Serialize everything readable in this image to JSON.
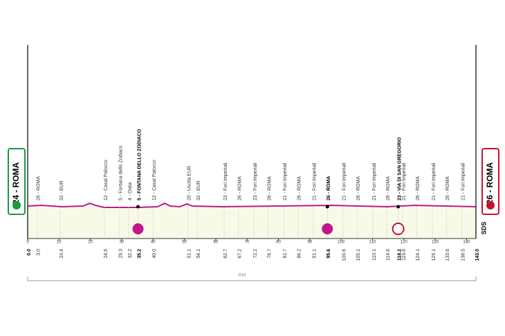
{
  "chart_data": {
    "type": "profile",
    "xlim": [
      0,
      143
    ],
    "xticks": [
      0,
      10,
      20,
      30,
      40,
      50,
      60,
      70,
      80,
      90,
      100,
      110,
      120,
      130,
      140
    ],
    "start": {
      "name": "24 - ROMA",
      "km": 0,
      "km_label": "0.0"
    },
    "finish": {
      "name": "26 - ROMA",
      "km": 143,
      "km_label": "143.0"
    },
    "waypoints": [
      {
        "km": 3,
        "km_label": "3.0",
        "name": "26 - ROMA"
      },
      {
        "km": 10.4,
        "km_label": "10.4",
        "name": "32 - EUR"
      },
      {
        "km": 24.5,
        "km_label": "24.5",
        "name": "12 - Casal Palocco"
      },
      {
        "km": 29.3,
        "km_label": "29.3",
        "name": "5 - Fontana dello Zodiaco"
      },
      {
        "km": 32.2,
        "km_label": "32.2",
        "name": "4 - Ostia"
      },
      {
        "km": 35.2,
        "km_label": "35.2",
        "name": "5 - FONTANA DELLO ZODIACO",
        "bold": true,
        "marker": "sprint"
      },
      {
        "km": 40,
        "km_label": "40.0",
        "name": "12 - Casal Palocco"
      },
      {
        "km": 51.1,
        "km_label": "51.1",
        "name": "20 - Uscita EUR"
      },
      {
        "km": 54.1,
        "km_label": "54.1",
        "name": "32 - EUR"
      },
      {
        "km": 62.7,
        "km_label": "62.7",
        "name": "23 - Fori Imperiali"
      },
      {
        "km": 67.2,
        "km_label": "67.2",
        "name": "26 - ROMA"
      },
      {
        "km": 72.2,
        "km_label": "72.2",
        "name": "23 - Fori Imperiali"
      },
      {
        "km": 76.7,
        "km_label": "76.7",
        "name": "26 - ROMA"
      },
      {
        "km": 81.7,
        "km_label": "81.7",
        "name": "21 - Fori Imperiali"
      },
      {
        "km": 86.2,
        "km_label": "86.2",
        "name": "26 - ROMA"
      },
      {
        "km": 91.1,
        "km_label": "91.1",
        "name": "21 - Fori Imperiali"
      },
      {
        "km": 95.6,
        "km_label": "95.6",
        "name": "26 - ROMA",
        "bold": true,
        "marker": "sprint"
      },
      {
        "km": 100.6,
        "km_label": "100.6",
        "name": "21 - Fori Imperiali"
      },
      {
        "km": 105.1,
        "km_label": "105.1",
        "name": "26 - ROMA"
      },
      {
        "km": 110.1,
        "km_label": "110.1",
        "name": "21 - Fori Imperiali"
      },
      {
        "km": 114.6,
        "km_label": "114.6",
        "name": "26 - ROMA"
      },
      {
        "km": 118.2,
        "km_label": "118.2",
        "name": "23 - VIA DI SAN GREGORIO",
        "bold": true,
        "marker": "bonus"
      },
      {
        "km": 119.6,
        "km_label": "119.6",
        "name": "21 - Fori Imperiali"
      },
      {
        "km": 124.1,
        "km_label": "124.1",
        "name": "26 - ROMA"
      },
      {
        "km": 129.1,
        "km_label": "129.1",
        "name": "21 - Fori Imperiali"
      },
      {
        "km": 133.6,
        "km_label": "133.6",
        "name": "26 - ROMA"
      },
      {
        "km": 138.5,
        "km_label": "138.5",
        "name": "21 - Fori Imperiali"
      }
    ],
    "province": "RM",
    "logo": "SDS",
    "line_color": "#c0188c",
    "start_color": "#1a9a3a",
    "finish_color": "#c8102e"
  }
}
